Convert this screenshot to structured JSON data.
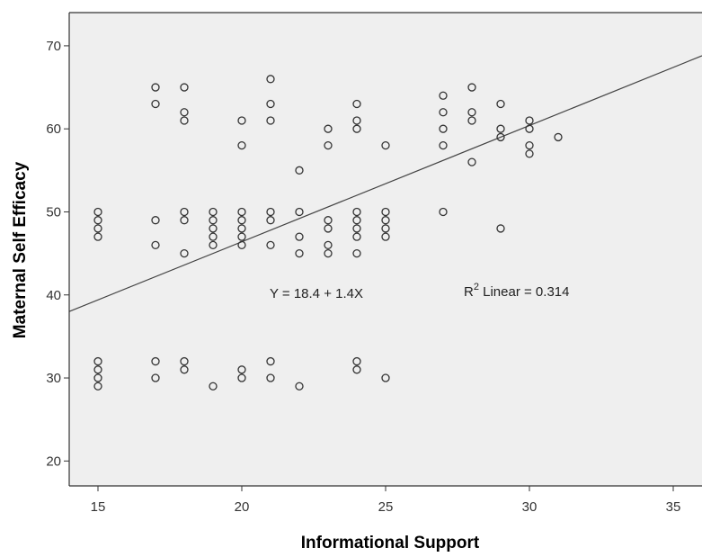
{
  "chart_data": {
    "type": "scatter",
    "xlabel": "Informational Support",
    "ylabel": "Maternal Self Efficacy",
    "xlim": [
      14,
      36
    ],
    "ylim": [
      17,
      74
    ],
    "xticks": [
      15,
      20,
      25,
      30,
      35
    ],
    "yticks": [
      20,
      30,
      40,
      50,
      60,
      70
    ],
    "grid": false,
    "plot_background": "#efefef",
    "point_color": "#333333",
    "line_color": "#444444",
    "fit_line": {
      "intercept": 18.4,
      "slope": 1.4
    },
    "annotations": {
      "equation": "Y = 18.4 + 1.4X",
      "r2_prefix": "R",
      "r2_sup": "2",
      "r2_text": " Linear = 0.314"
    },
    "points": [
      [
        15,
        50
      ],
      [
        15,
        49
      ],
      [
        15,
        48
      ],
      [
        15,
        47
      ],
      [
        15,
        32
      ],
      [
        15,
        31
      ],
      [
        15,
        30
      ],
      [
        15,
        29
      ],
      [
        17,
        65
      ],
      [
        17,
        63
      ],
      [
        17,
        49
      ],
      [
        17,
        46
      ],
      [
        17,
        32
      ],
      [
        17,
        30
      ],
      [
        18,
        65
      ],
      [
        18,
        62
      ],
      [
        18,
        61
      ],
      [
        18,
        50
      ],
      [
        18,
        49
      ],
      [
        18,
        45
      ],
      [
        18,
        32
      ],
      [
        18,
        31
      ],
      [
        19,
        50
      ],
      [
        19,
        49
      ],
      [
        19,
        48
      ],
      [
        19,
        47
      ],
      [
        19,
        46
      ],
      [
        19,
        29
      ],
      [
        20,
        61
      ],
      [
        20,
        58
      ],
      [
        20,
        50
      ],
      [
        20,
        49
      ],
      [
        20,
        48
      ],
      [
        20,
        47
      ],
      [
        20,
        46
      ],
      [
        20,
        31
      ],
      [
        20,
        30
      ],
      [
        21,
        66
      ],
      [
        21,
        63
      ],
      [
        21,
        61
      ],
      [
        21,
        50
      ],
      [
        21,
        49
      ],
      [
        21,
        46
      ],
      [
        21,
        32
      ],
      [
        21,
        30
      ],
      [
        22,
        55
      ],
      [
        22,
        50
      ],
      [
        22,
        47
      ],
      [
        22,
        45
      ],
      [
        22,
        29
      ],
      [
        23,
        60
      ],
      [
        23,
        58
      ],
      [
        23,
        49
      ],
      [
        23,
        48
      ],
      [
        23,
        46
      ],
      [
        23,
        45
      ],
      [
        24,
        63
      ],
      [
        24,
        61
      ],
      [
        24,
        60
      ],
      [
        24,
        50
      ],
      [
        24,
        49
      ],
      [
        24,
        48
      ],
      [
        24,
        47
      ],
      [
        24,
        45
      ],
      [
        24,
        32
      ],
      [
        24,
        31
      ],
      [
        25,
        58
      ],
      [
        25,
        50
      ],
      [
        25,
        49
      ],
      [
        25,
        48
      ],
      [
        25,
        47
      ],
      [
        25,
        30
      ],
      [
        27,
        64
      ],
      [
        27,
        62
      ],
      [
        27,
        60
      ],
      [
        27,
        58
      ],
      [
        27,
        50
      ],
      [
        28,
        65
      ],
      [
        28,
        62
      ],
      [
        28,
        61
      ],
      [
        28,
        56
      ],
      [
        29,
        63
      ],
      [
        29,
        60
      ],
      [
        29,
        59
      ],
      [
        29,
        48
      ],
      [
        30,
        61
      ],
      [
        30,
        60
      ],
      [
        30,
        58
      ],
      [
        30,
        57
      ],
      [
        31,
        59
      ]
    ]
  }
}
